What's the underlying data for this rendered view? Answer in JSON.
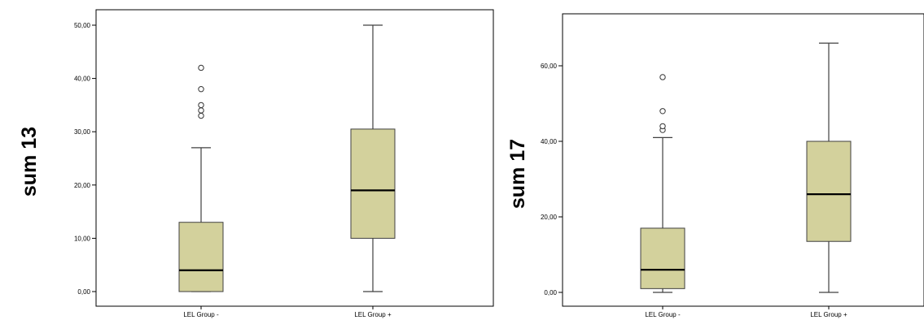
{
  "colors": {
    "box_fill": "#d3d19c",
    "box_stroke": "#404040",
    "median": "#000000",
    "axis": "#000000",
    "background": "#ffffff"
  },
  "chart_data": [
    {
      "type": "boxplot",
      "ylabel": "sum 13",
      "ylim": [
        0,
        50
      ],
      "yticks": [
        0,
        10,
        20,
        30,
        40,
        50
      ],
      "ytick_labels": [
        "0,00",
        "10,00",
        "20,00",
        "30,00",
        "40,00",
        "50,00"
      ],
      "categories": [
        "LEL Group -",
        "LEL Group +"
      ],
      "boxes": [
        {
          "category": "LEL Group -",
          "min": 0,
          "q1": 0,
          "median": 4,
          "q3": 13,
          "max": 27,
          "outliers": [
            33,
            34,
            35,
            38,
            42
          ]
        },
        {
          "category": "LEL Group +",
          "min": 0,
          "q1": 10,
          "median": 19,
          "q3": 30.5,
          "max": 50,
          "outliers": []
        }
      ]
    },
    {
      "type": "boxplot",
      "ylabel": "sum 17",
      "ylim": [
        0,
        60
      ],
      "yticks": [
        0,
        20,
        40,
        60
      ],
      "ytick_labels": [
        "0,00",
        "20,00",
        "40,00",
        "60,00"
      ],
      "categories": [
        "LEL Group -",
        "LEL Group +"
      ],
      "boxes": [
        {
          "category": "LEL Group -",
          "min": 0,
          "q1": 1,
          "median": 6,
          "q3": 17,
          "max": 41,
          "outliers": [
            43,
            44,
            48,
            57
          ]
        },
        {
          "category": "LEL Group +",
          "min": 0,
          "q1": 13.5,
          "median": 26,
          "q3": 40,
          "max": 66,
          "outliers": []
        }
      ]
    }
  ]
}
